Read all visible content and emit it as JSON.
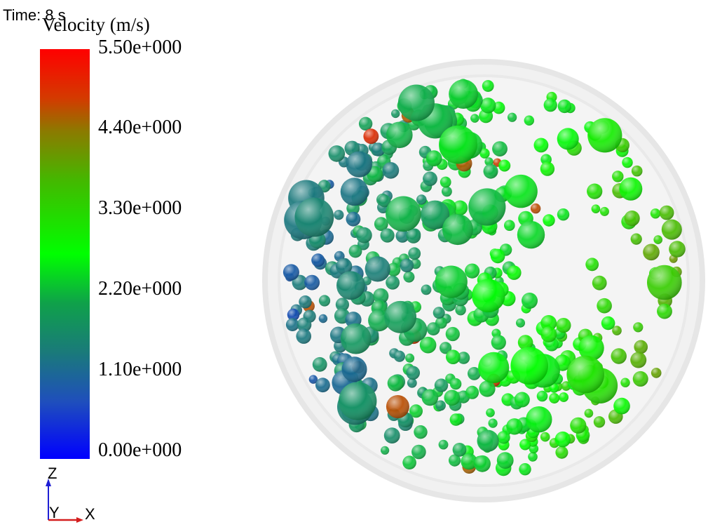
{
  "time_label": "Time: 8 s",
  "legend": {
    "title": "Velocity (m/s)",
    "ticks": [
      "5.50e+000",
      "4.40e+000",
      "3.30e+000",
      "2.20e+000",
      "1.10e+000",
      "0.00e+000"
    ],
    "range": [
      0,
      5.5
    ],
    "colormap": [
      "#0000ff",
      "#1a7a7a",
      "#00ff00",
      "#8c7a00",
      "#ff0000"
    ]
  },
  "axes": {
    "x": "X",
    "y": "Y",
    "z": "Z",
    "x_color": "#d41e1e",
    "z_color": "#1e1ed4"
  }
}
